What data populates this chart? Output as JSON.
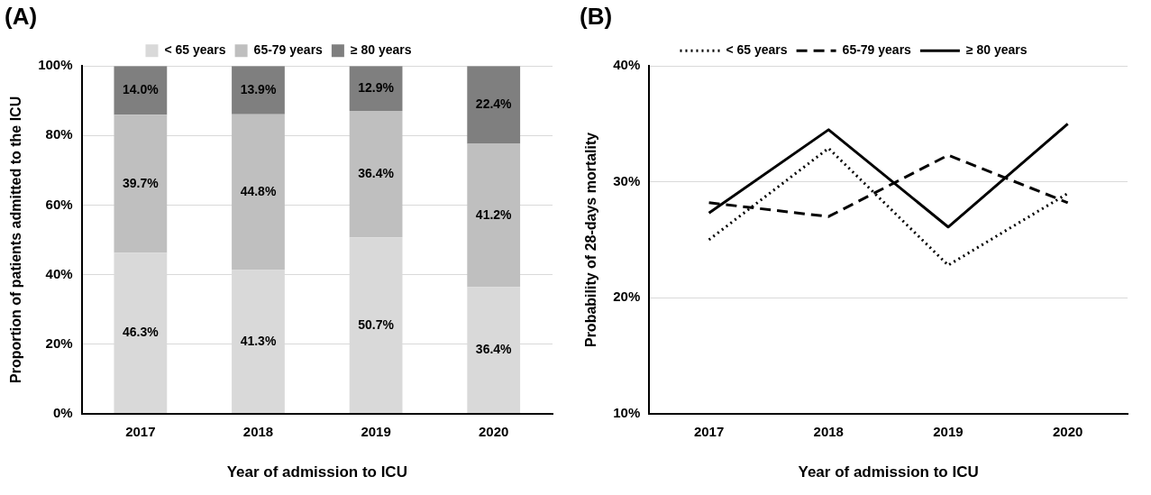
{
  "chart_data": [
    {
      "type": "bar",
      "title": "(A)",
      "stacked": true,
      "data_labels": true,
      "legend": "top",
      "grid": "y",
      "categories": [
        "2017",
        "2018",
        "2019",
        "2020"
      ],
      "xlabel": "Year of admission to ICU",
      "ylabel": "Proportion of patients admitted to the ICU",
      "ylim": [
        0,
        100
      ],
      "yticks": [
        {
          "value": 0,
          "label": "0%"
        },
        {
          "value": 20,
          "label": "20%"
        },
        {
          "value": 40,
          "label": "40%"
        },
        {
          "value": 60,
          "label": "60%"
        },
        {
          "value": 80,
          "label": "80%"
        },
        {
          "value": 100,
          "label": "100%"
        }
      ],
      "series": [
        {
          "name": "< 65 years",
          "color": "#d9d9d9",
          "values": [
            46.3,
            41.3,
            50.7,
            36.4
          ],
          "value_labels": [
            "46.3%",
            "41.3%",
            "50.7%",
            "36.4%"
          ]
        },
        {
          "name": "65-79 years",
          "color": "#bfbfbf",
          "values": [
            39.7,
            44.8,
            36.4,
            41.2
          ],
          "value_labels": [
            "39.7%",
            "44.8%",
            "36.4%",
            "41.2%"
          ]
        },
        {
          "name": "≥ 80 years",
          "color": "#7f7f7f",
          "values": [
            14.0,
            13.9,
            12.9,
            22.4
          ],
          "value_labels": [
            "14.0%",
            "13.9%",
            "12.9%",
            "22.4%"
          ]
        }
      ]
    },
    {
      "type": "line",
      "title": "(B)",
      "legend": "top",
      "grid": "y",
      "marker": "none",
      "categories": [
        "2017",
        "2018",
        "2019",
        "2020"
      ],
      "xlabel": "Year of admission to ICU",
      "ylabel": "Probability of 28-days mortality",
      "ylim": [
        10,
        40
      ],
      "yticks": [
        {
          "value": 10,
          "label": "10%"
        },
        {
          "value": 20,
          "label": "20%"
        },
        {
          "value": 30,
          "label": "30%"
        },
        {
          "value": 40,
          "label": "40%"
        }
      ],
      "series": [
        {
          "name": "< 65 years",
          "color": "#000000",
          "line_style": "dotted",
          "values": [
            25.0,
            32.9,
            22.8,
            29.0
          ]
        },
        {
          "name": "65-79 years",
          "color": "#000000",
          "line_style": "dashed",
          "values": [
            28.2,
            27.0,
            32.3,
            28.2
          ]
        },
        {
          "name": "≥ 80 years",
          "color": "#000000",
          "line_style": "solid",
          "values": [
            27.3,
            34.5,
            26.1,
            35.0
          ]
        }
      ]
    }
  ]
}
